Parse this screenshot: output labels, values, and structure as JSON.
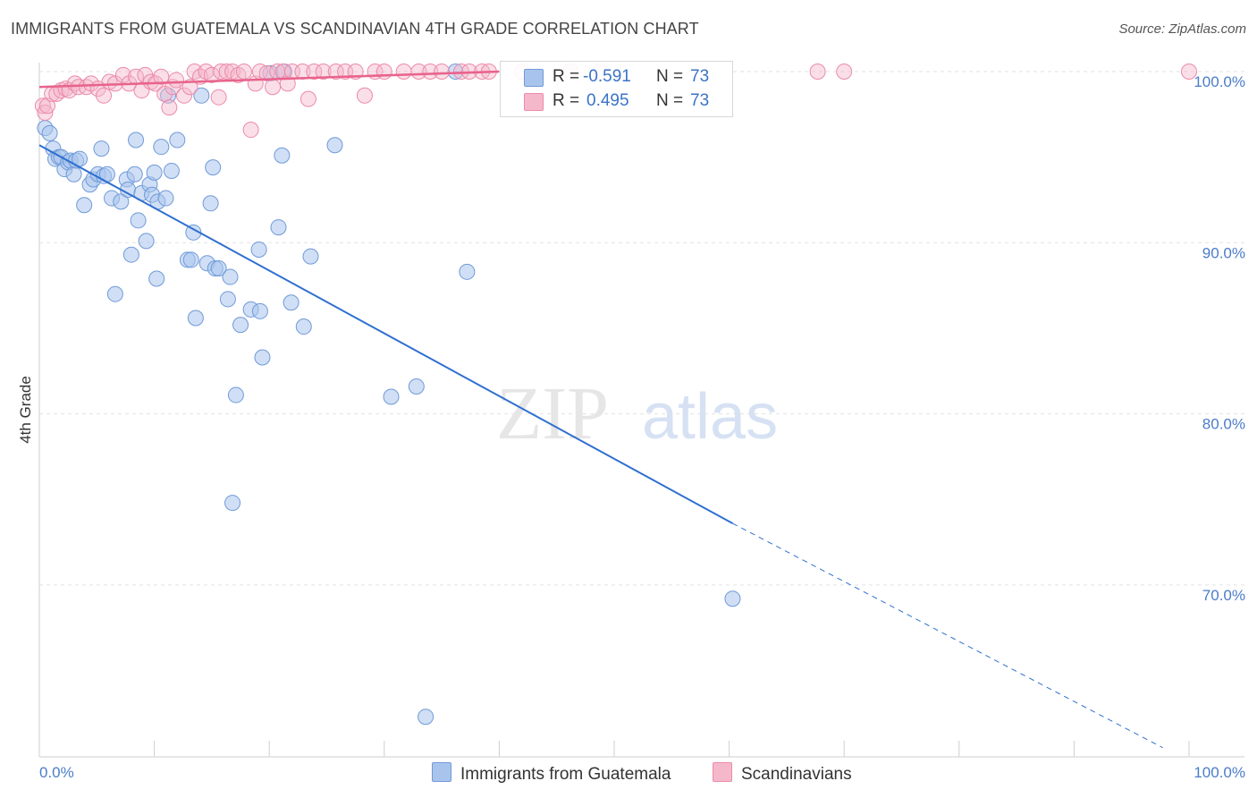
{
  "header": {
    "title": "IMMIGRANTS FROM GUATEMALA VS SCANDINAVIAN 4TH GRADE CORRELATION CHART",
    "source": "Source: ZipAtlas.com"
  },
  "watermark": {
    "zip": "ZIP",
    "atlas": "atlas"
  },
  "legend": {
    "blue": {
      "r_label": "R =",
      "r_value": "-0.591",
      "n_label": "N =",
      "n_value": "73"
    },
    "pink": {
      "r_label": "R =",
      "r_value": "0.495",
      "n_label": "N =",
      "n_value": "73"
    }
  },
  "bottom_legend": {
    "blue": "Immigrants from Guatemala",
    "pink": "Scandinavians"
  },
  "colors": {
    "blue_fill": "#a9c4ec",
    "blue_stroke": "#6f9ad8",
    "blue_line": "#2f6fd0",
    "pink_fill": "#f5b8cb",
    "pink_stroke": "#ec8aa9",
    "pink_line": "#e8638c",
    "tick_text": "#4a7cc9",
    "grid": "#e2e2e2"
  },
  "chart_data": {
    "type": "scatter",
    "title": "IMMIGRANTS FROM GUATEMALA VS SCANDINAVIAN 4TH GRADE CORRELATION CHART",
    "xlabel": "",
    "ylabel": "4th Grade",
    "xlim": [
      0,
      100
    ],
    "ylim": [
      60.5,
      101.0
    ],
    "x_tick_labels": [
      "0.0%",
      "100.0%"
    ],
    "y_ticks": [
      70,
      80,
      90,
      100
    ],
    "y_tick_labels": [
      "70.0%",
      "80.0%",
      "90.0%",
      "100.0%"
    ],
    "grid": true,
    "legend_position": "top-center",
    "series": [
      {
        "name": "Immigrants from Guatemala",
        "color": "#a9c4ec",
        "points": [
          [
            0.5,
            96.7
          ],
          [
            0.9,
            96.4
          ],
          [
            1.2,
            95.5
          ],
          [
            1.4,
            94.9
          ],
          [
            1.7,
            95.0
          ],
          [
            1.9,
            95.0
          ],
          [
            2.2,
            94.3
          ],
          [
            2.5,
            94.7
          ],
          [
            2.7,
            94.8
          ],
          [
            3.0,
            94.0
          ],
          [
            3.2,
            94.8
          ],
          [
            3.5,
            94.9
          ],
          [
            3.9,
            92.2
          ],
          [
            4.4,
            93.4
          ],
          [
            4.7,
            93.7
          ],
          [
            5.1,
            94.0
          ],
          [
            5.4,
            95.5
          ],
          [
            5.6,
            93.9
          ],
          [
            5.9,
            94.0
          ],
          [
            6.3,
            92.6
          ],
          [
            6.6,
            87.0
          ],
          [
            7.1,
            92.4
          ],
          [
            7.6,
            93.7
          ],
          [
            7.7,
            93.1
          ],
          [
            8.0,
            89.3
          ],
          [
            8.3,
            94.0
          ],
          [
            8.4,
            96.0
          ],
          [
            8.6,
            91.3
          ],
          [
            8.9,
            92.9
          ],
          [
            9.3,
            90.1
          ],
          [
            9.6,
            93.4
          ],
          [
            9.8,
            92.8
          ],
          [
            10.0,
            94.1
          ],
          [
            10.2,
            87.9
          ],
          [
            10.3,
            92.4
          ],
          [
            10.6,
            95.6
          ],
          [
            11.0,
            92.6
          ],
          [
            11.2,
            98.6
          ],
          [
            11.5,
            94.2
          ],
          [
            12.0,
            96.0
          ],
          [
            12.9,
            89.0
          ],
          [
            13.2,
            89.0
          ],
          [
            13.4,
            90.6
          ],
          [
            13.6,
            85.6
          ],
          [
            14.1,
            98.6
          ],
          [
            14.6,
            88.8
          ],
          [
            14.9,
            92.3
          ],
          [
            15.1,
            94.4
          ],
          [
            15.3,
            88.5
          ],
          [
            15.6,
            88.5
          ],
          [
            16.4,
            86.7
          ],
          [
            16.6,
            88.0
          ],
          [
            16.8,
            74.8
          ],
          [
            17.1,
            81.1
          ],
          [
            17.5,
            85.2
          ],
          [
            18.4,
            86.1
          ],
          [
            19.1,
            89.6
          ],
          [
            19.2,
            86.0
          ],
          [
            19.4,
            83.3
          ],
          [
            20.1,
            99.9
          ],
          [
            20.8,
            90.9
          ],
          [
            21.1,
            95.1
          ],
          [
            21.3,
            100.0
          ],
          [
            21.9,
            86.5
          ],
          [
            23.0,
            85.1
          ],
          [
            23.6,
            89.2
          ],
          [
            25.7,
            95.7
          ],
          [
            30.6,
            81.0
          ],
          [
            32.8,
            81.6
          ],
          [
            33.6,
            62.3
          ],
          [
            36.2,
            100.0
          ],
          [
            37.2,
            88.3
          ],
          [
            60.3,
            69.2
          ]
        ]
      },
      {
        "name": "Scandinavians",
        "color": "#f5b8cb",
        "points": [
          [
            0.3,
            98.0
          ],
          [
            0.5,
            97.6
          ],
          [
            0.7,
            98.0
          ],
          [
            1.1,
            98.7
          ],
          [
            1.5,
            98.7
          ],
          [
            1.9,
            98.9
          ],
          [
            2.3,
            99.0
          ],
          [
            2.6,
            98.9
          ],
          [
            3.1,
            99.3
          ],
          [
            3.4,
            99.1
          ],
          [
            4.1,
            99.1
          ],
          [
            4.5,
            99.3
          ],
          [
            5.1,
            99.0
          ],
          [
            5.6,
            98.6
          ],
          [
            6.1,
            99.4
          ],
          [
            6.6,
            99.3
          ],
          [
            7.3,
            99.8
          ],
          [
            7.8,
            99.3
          ],
          [
            8.4,
            99.7
          ],
          [
            8.9,
            98.9
          ],
          [
            9.2,
            99.8
          ],
          [
            9.7,
            99.4
          ],
          [
            10.1,
            99.3
          ],
          [
            10.6,
            99.7
          ],
          [
            10.9,
            98.7
          ],
          [
            11.3,
            97.9
          ],
          [
            11.6,
            99.1
          ],
          [
            11.9,
            99.5
          ],
          [
            12.6,
            98.6
          ],
          [
            13.1,
            99.1
          ],
          [
            13.5,
            100.0
          ],
          [
            14.0,
            99.7
          ],
          [
            14.5,
            100.0
          ],
          [
            15.0,
            99.8
          ],
          [
            15.6,
            98.5
          ],
          [
            15.8,
            100.0
          ],
          [
            16.3,
            100.0
          ],
          [
            16.8,
            100.0
          ],
          [
            17.3,
            99.8
          ],
          [
            17.8,
            100.0
          ],
          [
            18.4,
            96.6
          ],
          [
            18.8,
            99.3
          ],
          [
            19.2,
            100.0
          ],
          [
            19.8,
            99.9
          ],
          [
            20.3,
            99.1
          ],
          [
            20.7,
            100.0
          ],
          [
            21.2,
            100.0
          ],
          [
            21.6,
            99.3
          ],
          [
            22.0,
            100.0
          ],
          [
            22.9,
            100.0
          ],
          [
            23.4,
            98.4
          ],
          [
            23.9,
            100.0
          ],
          [
            24.7,
            100.0
          ],
          [
            25.8,
            100.0
          ],
          [
            26.6,
            100.0
          ],
          [
            27.5,
            100.0
          ],
          [
            28.3,
            98.6
          ],
          [
            29.2,
            100.0
          ],
          [
            30.0,
            100.0
          ],
          [
            31.7,
            100.0
          ],
          [
            33.0,
            100.0
          ],
          [
            34.0,
            100.0
          ],
          [
            35.0,
            100.0
          ],
          [
            36.7,
            100.0
          ],
          [
            37.4,
            100.0
          ],
          [
            38.5,
            100.0
          ],
          [
            39.1,
            100.0
          ],
          [
            42.0,
            100.0
          ],
          [
            46.2,
            100.0
          ],
          [
            48.8,
            100.0
          ],
          [
            67.7,
            100.0
          ],
          [
            70.0,
            100.0
          ],
          [
            100.0,
            100.0
          ]
        ]
      }
    ],
    "trend_lines": [
      {
        "series": "Immigrants from Guatemala",
        "x0": 0,
        "y0": 95.7,
        "x1": 60.3,
        "y1": 73.6,
        "dashed_to_x": 97.7,
        "dashed_to_y": 60.5
      },
      {
        "series": "Scandinavians",
        "x0": 0,
        "y0": 99.1,
        "x1": 40.0,
        "y1": 100.0
      }
    ]
  }
}
